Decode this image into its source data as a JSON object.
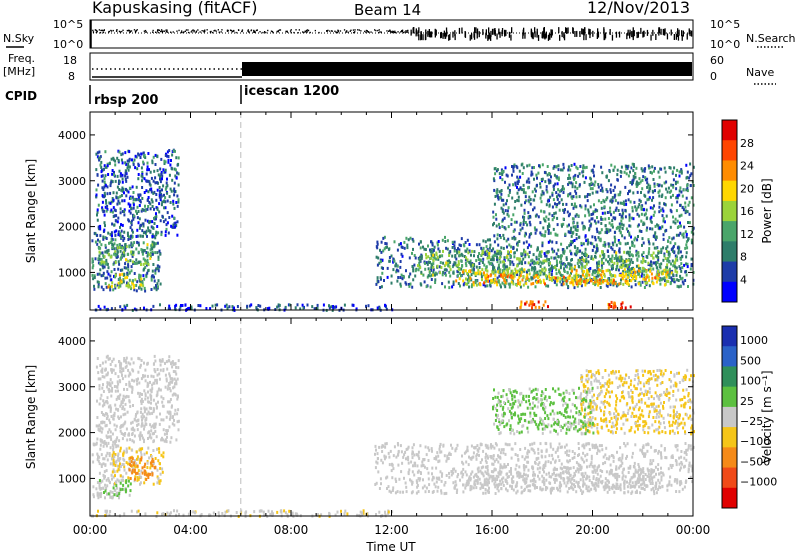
{
  "header": {
    "title": "Kapuskasing (fitACF)",
    "beam": "Beam 14",
    "date": "12/Nov/2013"
  },
  "noise_panel": {
    "left_label": "N.Sky",
    "right_label": "N.Search",
    "y_ticks_left": [
      "10^5",
      "10^0"
    ],
    "y_ticks_right": [
      "10^5",
      "10^0"
    ]
  },
  "freq_panel": {
    "left_label_1": "Freq.",
    "left_label_2": "[MHz]",
    "right_label": "Nave",
    "y_ticks_left": [
      "18",
      "8"
    ],
    "y_ticks_right": [
      "60",
      "0"
    ]
  },
  "cpid_panel": {
    "label": "CPID",
    "segments": [
      "rbsp 200",
      "icescan 1200"
    ]
  },
  "colors": {
    "power_scale": [
      "#0000ff",
      "#1e3ca8",
      "#2e7d6a",
      "#4aa56a",
      "#9bd33a",
      "#ffd700",
      "#ff8c00",
      "#ff4500",
      "#e00000"
    ],
    "velocity_scale": [
      "#1a2fb0",
      "#2a62c8",
      "#2f8f5a",
      "#5cc040",
      "#c8c8c8",
      "#f5c518",
      "#f58a18",
      "#f04a18",
      "#e00000"
    ]
  },
  "chart_data": [
    {
      "type": "heatmap",
      "name": "power",
      "ylabel": "Slant Range [km]",
      "y_ticks": [
        1000,
        2000,
        3000,
        4000
      ],
      "ylim": [
        180,
        4500
      ],
      "x_ticks": [
        "00:00",
        "04:00",
        "08:00",
        "12:00",
        "16:00",
        "20:00",
        "00:00"
      ],
      "xlim_hours": [
        0,
        24
      ],
      "colorbar": {
        "label": "Power [dB]",
        "ticks": [
          "28",
          "24",
          "20",
          "16",
          "12",
          "8",
          "4"
        ],
        "range": [
          0,
          30
        ]
      },
      "regions": [
        {
          "t0": 0.05,
          "t1": 2.8,
          "r0": 600,
          "r1": 1900,
          "value": 8
        },
        {
          "t0": 0.3,
          "t1": 2.5,
          "r0": 1200,
          "r1": 1650,
          "value": 12
        },
        {
          "t0": 0.6,
          "t1": 2.2,
          "r0": 700,
          "r1": 1000,
          "value": 16
        },
        {
          "t0": 0.2,
          "t1": 3.5,
          "r0": 1800,
          "r1": 3700,
          "value": 6
        },
        {
          "t0": 0.0,
          "t1": 12.0,
          "r0": 200,
          "r1": 330,
          "value": 4
        },
        {
          "t0": 11.3,
          "t1": 24.0,
          "r0": 700,
          "r1": 1800,
          "value": 8
        },
        {
          "t0": 13.0,
          "t1": 23.5,
          "r0": 950,
          "r1": 1500,
          "value": 12
        },
        {
          "t0": 14.5,
          "t1": 23.0,
          "r0": 750,
          "r1": 1100,
          "value": 16
        },
        {
          "t0": 15.5,
          "t1": 22.5,
          "r0": 780,
          "r1": 980,
          "value": 20
        },
        {
          "t0": 16.0,
          "t1": 24.0,
          "r0": 1800,
          "r1": 3400,
          "value": 8
        },
        {
          "t0": 17.0,
          "t1": 18.2,
          "r0": 250,
          "r1": 400,
          "value": 24
        },
        {
          "t0": 20.5,
          "t1": 21.5,
          "r0": 250,
          "r1": 380,
          "value": 24
        }
      ]
    },
    {
      "type": "heatmap",
      "name": "velocity",
      "ylabel": "Slant Range [km]",
      "y_ticks": [
        1000,
        2000,
        3000,
        4000
      ],
      "ylim": [
        180,
        4500
      ],
      "x_ticks": [
        "00:00",
        "04:00",
        "08:00",
        "12:00",
        "16:00",
        "20:00",
        "00:00"
      ],
      "xlabel": "Time UT",
      "xlim_hours": [
        0,
        24
      ],
      "colorbar": {
        "label": "Velocity [m s⁻¹]",
        "ticks": [
          "1000",
          "500",
          "100",
          "25",
          "−25",
          "−100",
          "−500",
          "−1000"
        ],
        "range": [
          -1200,
          1200
        ]
      },
      "regions": [
        {
          "t0": 0.05,
          "t1": 1.2,
          "r0": 600,
          "r1": 1900,
          "value": 0
        },
        {
          "t0": 0.8,
          "t1": 2.9,
          "r0": 900,
          "r1": 1700,
          "value": -150
        },
        {
          "t0": 1.5,
          "t1": 2.6,
          "r0": 1000,
          "r1": 1500,
          "value": -500
        },
        {
          "t0": 0.3,
          "t1": 1.6,
          "r0": 650,
          "r1": 1000,
          "value": 150
        },
        {
          "t0": 0.2,
          "t1": 3.5,
          "r0": 1800,
          "r1": 3700,
          "value": 50
        },
        {
          "t0": 0.0,
          "t1": 12.0,
          "r0": 200,
          "r1": 330,
          "value": -100
        },
        {
          "t0": 11.3,
          "t1": 24.0,
          "r0": 700,
          "r1": 1800,
          "value": 0
        },
        {
          "t0": 15.0,
          "t1": 22.5,
          "r0": 800,
          "r1": 1300,
          "value": 60
        },
        {
          "t0": 19.5,
          "t1": 24.0,
          "r0": 2000,
          "r1": 3400,
          "value": -150
        },
        {
          "t0": 16.0,
          "t1": 20.0,
          "r0": 2000,
          "r1": 3000,
          "value": 150
        }
      ]
    }
  ]
}
